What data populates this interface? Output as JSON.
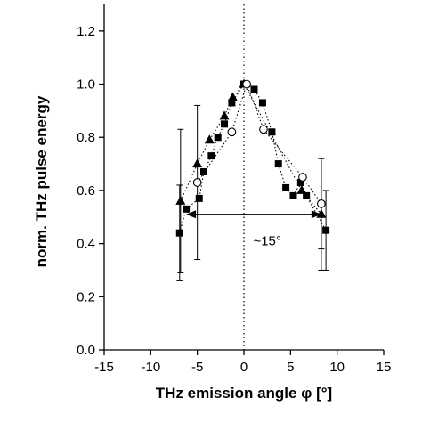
{
  "chart_data": {
    "type": "scatter",
    "xlabel": "THz emission angle φ [°]",
    "ylabel": "norm. THz pulse energy",
    "xlim": [
      -15,
      15
    ],
    "ylim": [
      0,
      1.3
    ],
    "x_ticks": [
      -15,
      -10,
      -5,
      0,
      5,
      10,
      15
    ],
    "y_ticks": [
      0.0,
      0.2,
      0.4,
      0.6,
      0.8,
      1.0,
      1.2
    ],
    "x_tick_labels": [
      "-15",
      "-10",
      "-5",
      "0",
      "5",
      "10",
      "15"
    ],
    "y_tick_labels": [
      "0.0",
      "0.2",
      "0.4",
      "0.6",
      "0.8",
      "1.0",
      "1.2"
    ],
    "grid": false,
    "series": [
      {
        "marker": "square-filled",
        "fit_line": "dotted",
        "points": [
          {
            "x": -6.9,
            "y": 0.44,
            "err": 0.18
          },
          {
            "x": -6.2,
            "y": 0.53
          },
          {
            "x": -4.8,
            "y": 0.57
          },
          {
            "x": -4.3,
            "y": 0.67
          },
          {
            "x": -3.5,
            "y": 0.73
          },
          {
            "x": -2.8,
            "y": 0.8
          },
          {
            "x": -2.1,
            "y": 0.85
          },
          {
            "x": -1.3,
            "y": 0.93
          },
          {
            "x": 0.0,
            "y": 1.0
          },
          {
            "x": 1.1,
            "y": 0.98
          },
          {
            "x": 2.0,
            "y": 0.93
          },
          {
            "x": 3.0,
            "y": 0.82
          },
          {
            "x": 3.7,
            "y": 0.7
          },
          {
            "x": 4.5,
            "y": 0.61
          },
          {
            "x": 5.3,
            "y": 0.58
          },
          {
            "x": 6.1,
            "y": 0.63
          },
          {
            "x": 6.7,
            "y": 0.58
          },
          {
            "x": 8.8,
            "y": 0.45,
            "err": 0.15
          }
        ]
      },
      {
        "marker": "triangle-filled",
        "fit_line": "dotted",
        "points": [
          {
            "x": -6.8,
            "y": 0.56,
            "err": 0.27
          },
          {
            "x": -5.0,
            "y": 0.7
          },
          {
            "x": -3.7,
            "y": 0.79
          },
          {
            "x": -2.1,
            "y": 0.88
          },
          {
            "x": -1.2,
            "y": 0.95
          },
          {
            "x": 0.0,
            "y": 1.0
          },
          {
            "x": 6.2,
            "y": 0.6
          },
          {
            "x": 8.3,
            "y": 0.51,
            "err": 0.21
          }
        ]
      },
      {
        "marker": "circle-open",
        "fit_line": "dotted",
        "points": [
          {
            "x": -5.0,
            "y": 0.63,
            "err": 0.29
          },
          {
            "x": -1.3,
            "y": 0.82
          },
          {
            "x": 0.3,
            "y": 1.0
          },
          {
            "x": 2.1,
            "y": 0.83
          },
          {
            "x": 6.3,
            "y": 0.65
          },
          {
            "x": 8.3,
            "y": 0.55,
            "err": 0.17
          }
        ]
      }
    ],
    "reference_line": {
      "x": 0,
      "style": "dotted"
    },
    "annotation": {
      "text": "~15°",
      "arrow_from": -6.2,
      "arrow_to": 8.3,
      "arrow_y": 0.51,
      "text_x": 2.5,
      "text_y": 0.41
    }
  }
}
